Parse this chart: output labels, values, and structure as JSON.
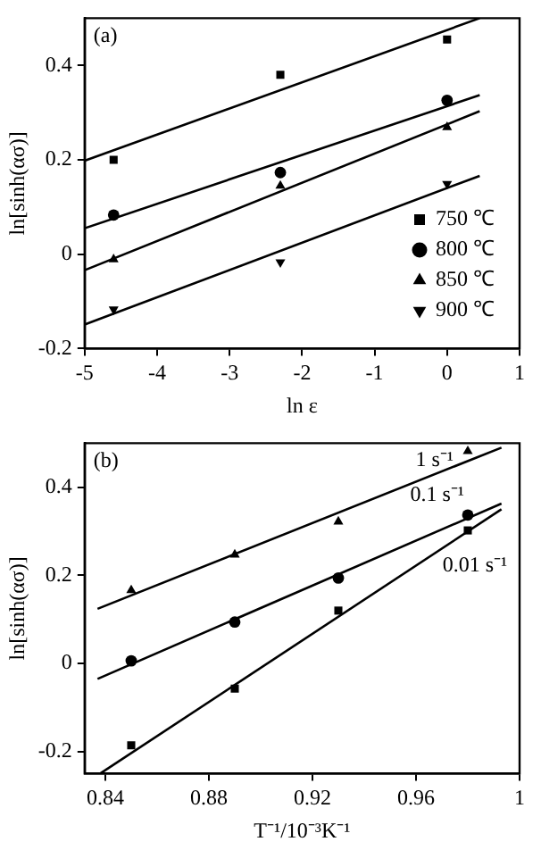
{
  "chart_data": [
    {
      "type": "scatter",
      "xlabel": "ln ε",
      "ylabel": "ln[sinh(ασ)]",
      "annotations": [
        "(a)"
      ],
      "xlim": [
        -5,
        1
      ],
      "xticks": [
        -5,
        -4,
        -3,
        -2,
        -1,
        0,
        1
      ],
      "ylim": [
        -0.2,
        0.5
      ],
      "yticks": [
        -0.2,
        0,
        0.2,
        0.4
      ],
      "grid": false,
      "legend": "bottom right",
      "series": [
        {
          "name": "750 ℃",
          "color": "#000000",
          "marker": "square",
          "x": [
            -4.6,
            -2.3,
            0
          ],
          "values": [
            0.2,
            0.38,
            0.455
          ]
        },
        {
          "name": "800 ℃",
          "color": "#000000",
          "marker": "circle",
          "x": [
            -4.6,
            -2.3,
            0
          ],
          "values": [
            0.083,
            0.173,
            0.326
          ]
        },
        {
          "name": "850 ℃",
          "color": "#000000",
          "marker": "triangle",
          "x": [
            -4.6,
            -2.3,
            0
          ],
          "values": [
            -0.011,
            0.145,
            0.269
          ]
        },
        {
          "name": "900 ℃",
          "color": "#000000",
          "marker": "triangle-down",
          "x": [
            -4.6,
            -2.3,
            0
          ],
          "values": [
            -0.117,
            -0.017,
            0.149
          ]
        },
        {
          "type": "line",
          "color": "#000000",
          "marker": "none",
          "x": [
            -5,
            0.45
          ],
          "values": [
            0.198,
            0.5
          ]
        },
        {
          "type": "line",
          "color": "#000000",
          "marker": "none",
          "x": [
            -5,
            0.45
          ],
          "values": [
            0.055,
            0.337
          ]
        },
        {
          "type": "line",
          "color": "#000000",
          "marker": "none",
          "x": [
            -5,
            0.45
          ],
          "values": [
            -0.034,
            0.303
          ]
        },
        {
          "type": "line",
          "color": "#000000",
          "marker": "none",
          "x": [
            -5,
            0.45
          ],
          "values": [
            -0.149,
            0.166
          ]
        }
      ]
    },
    {
      "type": "scatter",
      "xlabel": "T⁻¹/10⁻³K⁻¹",
      "ylabel": "ln[sinh(ασ)]",
      "annotations": [
        "(b)"
      ],
      "xlim": [
        0.832,
        1.0
      ],
      "xticks": [
        0.84,
        0.88,
        0.92,
        0.96,
        1.0
      ],
      "ylim": [
        -0.25,
        0.5
      ],
      "yticks": [
        -0.2,
        0,
        0.2,
        0.4
      ],
      "grid": false,
      "legend": false,
      "series": [
        {
          "name": "1 s⁻¹",
          "color": "#000000",
          "marker": "triangle",
          "x": [
            0.85,
            0.89,
            0.93,
            0.98
          ],
          "values": [
            0.166,
            0.247,
            0.322,
            0.482
          ]
        },
        {
          "name": "0.1 s⁻¹",
          "color": "#000000",
          "marker": "circle",
          "x": [
            0.85,
            0.89,
            0.93,
            0.98
          ],
          "values": [
            0.006,
            0.094,
            0.194,
            0.337
          ]
        },
        {
          "name": "0.01 s⁻¹",
          "color": "#000000",
          "marker": "square",
          "x": [
            0.85,
            0.89,
            0.93,
            0.98
          ],
          "values": [
            -0.186,
            -0.057,
            0.12,
            0.302
          ]
        },
        {
          "type": "line",
          "color": "#000000",
          "marker": "none",
          "x": [
            0.837,
            0.993
          ],
          "values": [
            0.124,
            0.49
          ]
        },
        {
          "type": "line",
          "color": "#000000",
          "marker": "none",
          "x": [
            0.837,
            0.993
          ],
          "values": [
            -0.035,
            0.363
          ]
        },
        {
          "type": "line",
          "color": "#000000",
          "marker": "none",
          "x": [
            0.838,
            0.993
          ],
          "values": [
            -0.25,
            0.35
          ]
        }
      ]
    }
  ]
}
